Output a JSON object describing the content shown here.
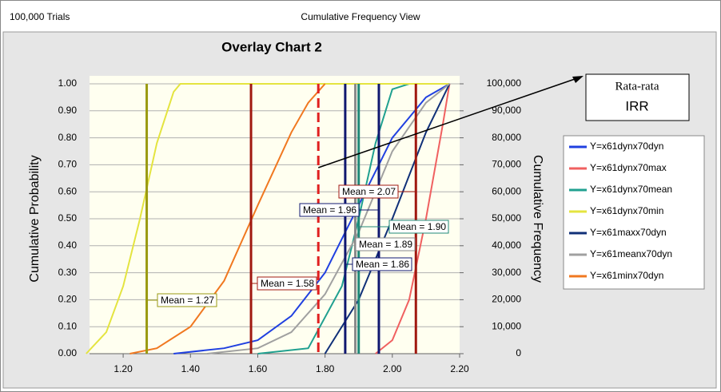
{
  "chart_data": {
    "type": "line",
    "header_left": "100,000 Trials",
    "header_center": "Cumulative Frequency View",
    "title": "Overlay Chart 2",
    "y_label": "Cumulative Probability",
    "y2_label": "Cumulative Frequency",
    "xlim": [
      1.1,
      2.2
    ],
    "xticks": [
      {
        "value": 1.2,
        "label": "1.20"
      },
      {
        "value": 1.4,
        "label": "1.40"
      },
      {
        "value": 1.6,
        "label": "1.60"
      },
      {
        "value": 1.8,
        "label": "1.80"
      },
      {
        "value": 2.0,
        "label": "2.00"
      },
      {
        "value": 2.2,
        "label": "2.20"
      }
    ],
    "ylim": [
      0,
      1
    ],
    "yticks": [
      {
        "value": 0,
        "label": "0.00"
      },
      {
        "value": 0.1,
        "label": "0.10"
      },
      {
        "value": 0.2,
        "label": "0.20"
      },
      {
        "value": 0.3,
        "label": "0.30"
      },
      {
        "value": 0.4,
        "label": "0.40"
      },
      {
        "value": 0.5,
        "label": "0.50"
      },
      {
        "value": 0.6,
        "label": "0.60"
      },
      {
        "value": 0.7,
        "label": "0.70"
      },
      {
        "value": 0.8,
        "label": "0.80"
      },
      {
        "value": 0.9,
        "label": "0.90"
      },
      {
        "value": 1,
        "label": "1.00"
      }
    ],
    "y2lim": [
      0,
      100000
    ],
    "y2ticks": [
      0,
      {
        "value": 10000,
        "label": "10,000"
      },
      {
        "value": 20000,
        "label": "20,000"
      },
      {
        "value": 30000,
        "label": "30,000"
      },
      {
        "value": 40000,
        "label": "40,000"
      },
      {
        "value": 50000,
        "label": "50,000"
      },
      {
        "value": 60000,
        "label": "60,000"
      },
      {
        "value": 70000,
        "label": "70,000"
      },
      {
        "value": 80000,
        "label": "80,000"
      },
      {
        "value": 90000,
        "label": "90,000"
      },
      {
        "value": 100000,
        "label": "100,000"
      }
    ],
    "grid": true,
    "legend": "right",
    "series": [
      {
        "name": "Y=x61dynx70dyn",
        "color": "#2040e0",
        "x": [
          1.35,
          1.5,
          1.6,
          1.7,
          1.8,
          1.9,
          2.0,
          2.1,
          2.17
        ],
        "values": [
          0,
          0.02,
          0.05,
          0.14,
          0.3,
          0.55,
          0.8,
          0.95,
          1.0
        ],
        "mean": 1.96,
        "mean_label": "Mean = 1.96",
        "mean_color": "#101870"
      },
      {
        "name": "Y=x61dynx70max",
        "color": "#f06060",
        "x": [
          1.95,
          2.0,
          2.05,
          2.1,
          2.15,
          2.17
        ],
        "values": [
          0,
          0.05,
          0.2,
          0.5,
          0.85,
          1.0
        ],
        "mean": 2.07,
        "mean_label": "Mean = 2.07",
        "mean_color": "#a01810"
      },
      {
        "name": "Y=x61dynx70mean",
        "color": "#20a090",
        "x": [
          1.6,
          1.75,
          1.85,
          1.9,
          1.95,
          2.0,
          2.05,
          2.17
        ],
        "values": [
          0,
          0.02,
          0.25,
          0.5,
          0.78,
          0.98,
          1.0,
          1.0
        ],
        "mean": 1.9,
        "mean_label": "Mean = 1.90",
        "mean_color": "#208878"
      },
      {
        "name": "Y=x61dynx70min",
        "color": "#e4e440",
        "x": [
          1.09,
          1.15,
          1.2,
          1.25,
          1.3,
          1.35,
          1.37,
          2.17
        ],
        "values": [
          0,
          0.08,
          0.25,
          0.5,
          0.78,
          0.97,
          1.0,
          1.0
        ],
        "mean": 1.27,
        "mean_label": "Mean = 1.27",
        "mean_color": "#9a9a10"
      },
      {
        "name": "Y=x61maxx70dyn",
        "color": "#103078",
        "x": [
          1.8,
          1.9,
          2.0,
          2.1,
          2.17
        ],
        "values": [
          0,
          0.2,
          0.5,
          0.82,
          1.0
        ],
        "mean": 1.86,
        "mean_label": "Mean = 1.86",
        "mean_color": "#101870"
      },
      {
        "name": "Y=x61meanx70dyn",
        "color": "#a0a0a0",
        "x": [
          1.45,
          1.6,
          1.7,
          1.8,
          1.9,
          2.0,
          2.1,
          2.17
        ],
        "values": [
          0,
          0.02,
          0.08,
          0.22,
          0.45,
          0.75,
          0.93,
          1.0
        ],
        "mean": 1.89,
        "mean_label": "Mean = 1.89",
        "mean_color": "#8a8a8a"
      },
      {
        "name": "Y=x61minx70dyn",
        "color": "#f07820",
        "x": [
          1.22,
          1.3,
          1.4,
          1.5,
          1.6,
          1.7,
          1.75,
          1.8
        ],
        "values": [
          0,
          0.02,
          0.1,
          0.27,
          0.55,
          0.82,
          0.93,
          1.0
        ],
        "mean": 1.58,
        "mean_label": "Mean = 1.58",
        "mean_color": "#a01810"
      }
    ],
    "annotation": {
      "text": [
        "Rata-rata",
        "IRR"
      ],
      "x": 1.78,
      "color": "#e02020"
    }
  }
}
